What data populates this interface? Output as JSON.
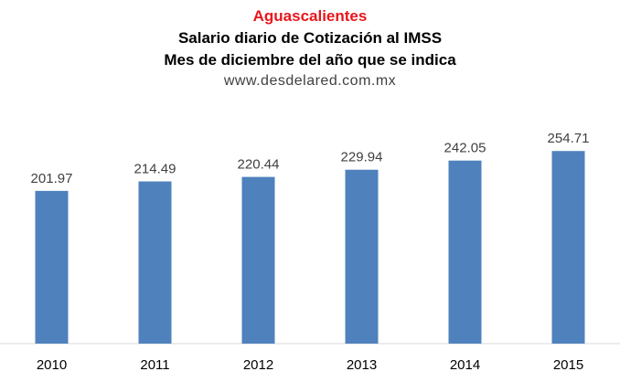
{
  "titles": {
    "region": "Aguascalientes",
    "line1": "Salario diario de Cotización al IMSS",
    "line2": "Mes de diciembre del año que se indica",
    "source": "www.desdelared.com.mx"
  },
  "colors": {
    "bar": "#4f81bd",
    "region_title": "#e8161b",
    "axis": "#d9d9d9"
  },
  "chart_data": {
    "type": "bar",
    "title": "Aguascalientes",
    "subtitle": "Salario diario de Cotización al IMSS / Mes de diciembre del año que se indica",
    "categories": [
      "2010",
      "2011",
      "2012",
      "2013",
      "2014",
      "2015"
    ],
    "values": [
      201.97,
      214.49,
      220.44,
      229.94,
      242.05,
      254.71
    ],
    "data_labels": [
      "201.97",
      "214.49",
      "220.44",
      "229.94",
      "242.05",
      "254.71"
    ],
    "xlabel": "",
    "ylabel": "",
    "ylim": [
      0,
      255
    ],
    "grid": false,
    "legend": "none"
  }
}
